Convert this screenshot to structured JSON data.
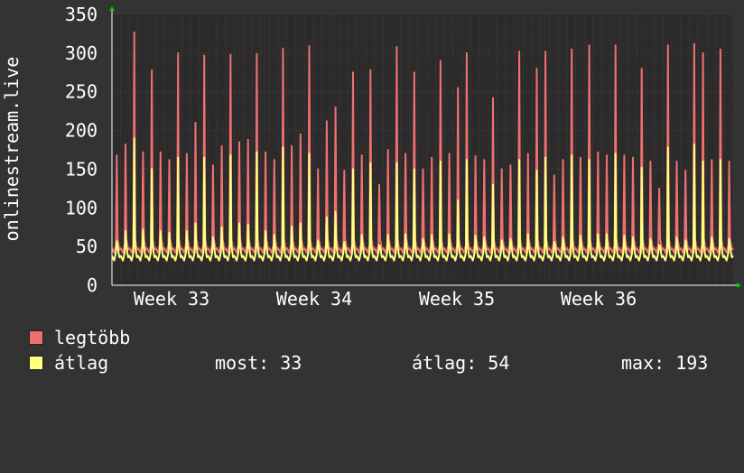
{
  "chart_data": {
    "type": "line",
    "ylabel": "onlinestream.live",
    "ylim": [
      0,
      350
    ],
    "yticks": [
      0,
      50,
      100,
      150,
      200,
      250,
      300,
      350
    ],
    "week_labels": [
      "Week 33",
      "Week 34",
      "Week 35",
      "Week 36"
    ],
    "grid": true,
    "colors": {
      "background": "#333333",
      "plot_bg": "#2b2b2b",
      "grid": "#5a3a3a",
      "max_series": "#f07070",
      "avg_series": "#ffff80",
      "axis_arrow": "#00cc00"
    },
    "series": [
      {
        "name": "legtöbb",
        "values": [
          168,
          182,
          327,
          172,
          278,
          172,
          162,
          300,
          170,
          210,
          297,
          155,
          180,
          298,
          185,
          188,
          299,
          172,
          162,
          306,
          180,
          195,
          309,
          150,
          212,
          230,
          148,
          275,
          168,
          278,
          130,
          175,
          308,
          170,
          275,
          150,
          165,
          290,
          170,
          255,
          300,
          167,
          162,
          242,
          150,
          155,
          302,
          170,
          280,
          302,
          142,
          162,
          305,
          165,
          310,
          172,
          168,
          310,
          168,
          165,
          280,
          160,
          125,
          310,
          160,
          148,
          312,
          300,
          162,
          305,
          160
        ]
      },
      {
        "name": "átlag",
        "values": [
          57,
          70,
          190,
          72,
          150,
          70,
          68,
          165,
          70,
          80,
          165,
          62,
          75,
          168,
          80,
          78,
          172,
          70,
          65,
          178,
          76,
          80,
          170,
          58,
          88,
          95,
          56,
          150,
          65,
          158,
          52,
          65,
          158,
          66,
          150,
          60,
          65,
          160,
          66,
          110,
          162,
          64,
          62,
          130,
          58,
          60,
          162,
          66,
          148,
          165,
          56,
          62,
          168,
          64,
          162,
          66,
          66,
          170,
          64,
          62,
          152,
          60,
          52,
          178,
          62,
          58,
          182,
          160,
          62,
          162,
          60
        ]
      }
    ]
  },
  "legend": {
    "max_label": "legtöbb",
    "avg_label": "átlag",
    "most": "most: 33",
    "atlag": "átlag: 54",
    "max": "max: 193"
  }
}
